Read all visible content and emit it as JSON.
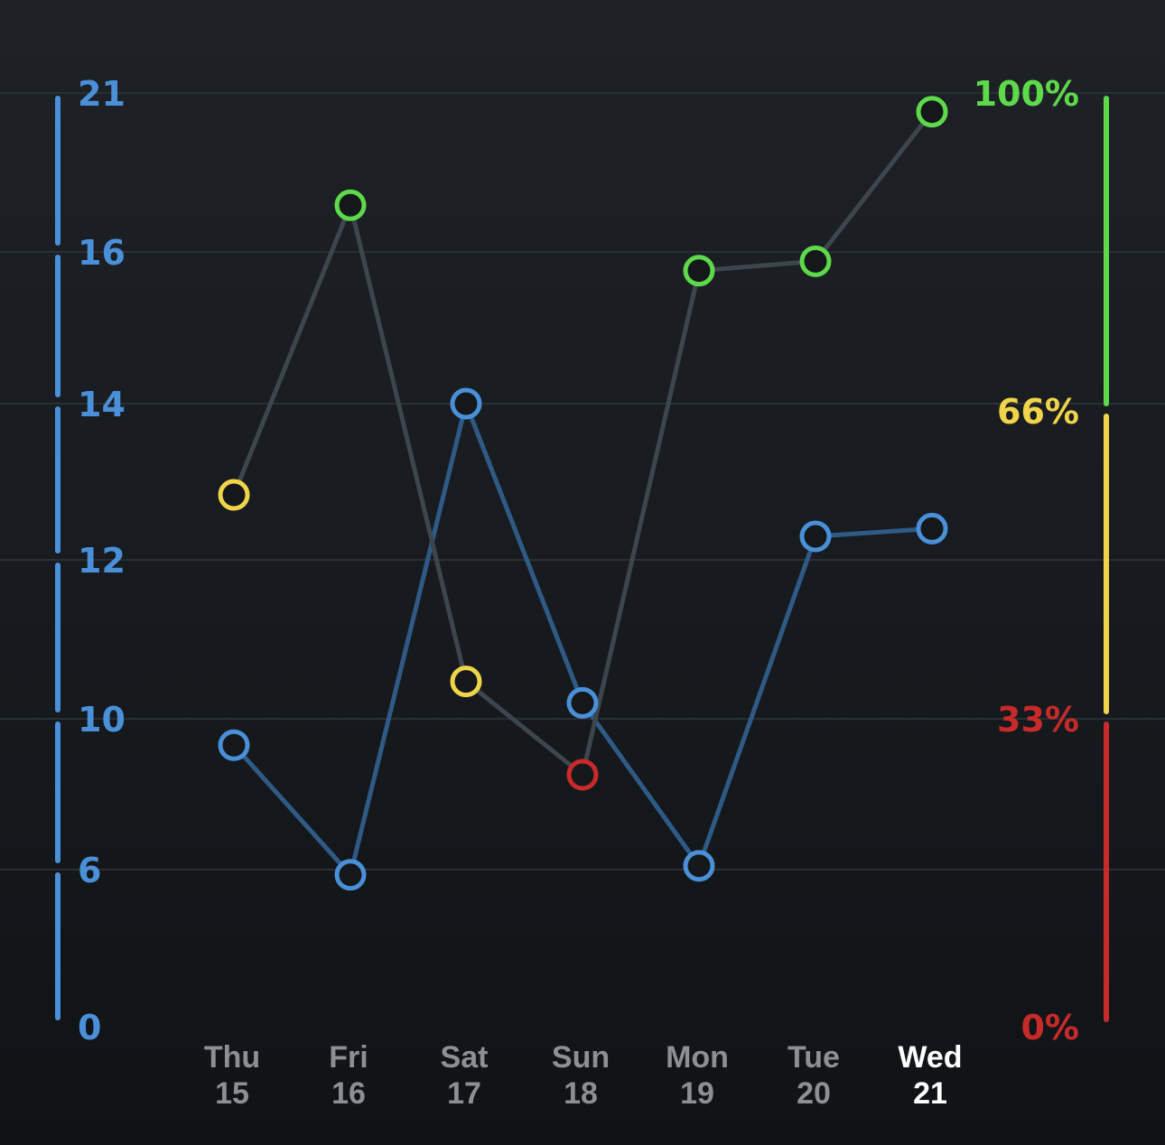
{
  "chart_data": {
    "type": "line",
    "categories": [
      {
        "day": "Thu",
        "date": "15"
      },
      {
        "day": "Fri",
        "date": "16"
      },
      {
        "day": "Sat",
        "date": "17"
      },
      {
        "day": "Sun",
        "date": "18"
      },
      {
        "day": "Mon",
        "date": "19"
      },
      {
        "day": "Tue",
        "date": "20"
      },
      {
        "day": "Wed",
        "date": "21"
      }
    ],
    "highlighted_category_index": 6,
    "left_axis": {
      "ticks": [
        "21",
        "16",
        "14",
        "12",
        "10",
        "6",
        "0"
      ],
      "color": "#4a90d9"
    },
    "right_axis": {
      "ticks": [
        "100%",
        "66%",
        "33%",
        "0%"
      ],
      "bands": [
        {
          "from": 66,
          "to": 100,
          "color": "#5ed94a"
        },
        {
          "from": 33,
          "to": 66,
          "color": "#f0d54a"
        },
        {
          "from": 0,
          "to": 33,
          "color": "#c82a2a"
        }
      ]
    },
    "series": [
      {
        "axis": "left",
        "line_color": "#2f5a86",
        "marker_color": "#4a90d9",
        "values": [
          9.3,
          5.8,
          14.0,
          10.2,
          6.1,
          12.3,
          12.4
        ]
      },
      {
        "axis": "right",
        "line_color": "#3d454d",
        "values": [
          57,
          88,
          37,
          27,
          81,
          82,
          98
        ]
      }
    ],
    "grid": true,
    "colors": {
      "grid": "#2a2f34",
      "x_label": "#8c8f93",
      "x_label_highlight": "#ffffff"
    }
  }
}
